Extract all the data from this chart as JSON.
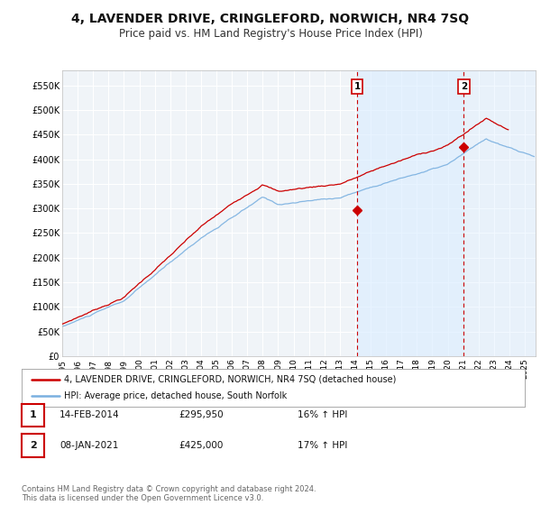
{
  "title": "4, LAVENDER DRIVE, CRINGLEFORD, NORWICH, NR4 7SQ",
  "subtitle": "Price paid vs. HM Land Registry's House Price Index (HPI)",
  "title_fontsize": 10,
  "subtitle_fontsize": 8.5,
  "ylabel_ticks": [
    "£0",
    "£50K",
    "£100K",
    "£150K",
    "£200K",
    "£250K",
    "£300K",
    "£350K",
    "£400K",
    "£450K",
    "£500K",
    "£550K"
  ],
  "ytick_values": [
    0,
    50000,
    100000,
    150000,
    200000,
    250000,
    300000,
    350000,
    400000,
    450000,
    500000,
    550000
  ],
  "ylim": [
    0,
    580000
  ],
  "xlim_start": 1995.0,
  "xlim_end": 2025.7,
  "xticks": [
    1995,
    1996,
    1997,
    1998,
    1999,
    2000,
    2001,
    2002,
    2003,
    2004,
    2005,
    2006,
    2007,
    2008,
    2009,
    2010,
    2011,
    2012,
    2013,
    2014,
    2015,
    2016,
    2017,
    2018,
    2019,
    2020,
    2021,
    2022,
    2023,
    2024,
    2025
  ],
  "hpi_color": "#7ab0e0",
  "price_color": "#cc0000",
  "dashed_line_color": "#cc0000",
  "shade_color": "#ddeeff",
  "point1_x": 2014.12,
  "point1_y": 295950,
  "point2_x": 2021.05,
  "point2_y": 425000,
  "annotation1_label": "1",
  "annotation2_label": "2",
  "legend_label1": "4, LAVENDER DRIVE, CRINGLEFORD, NORWICH, NR4 7SQ (detached house)",
  "legend_label2": "HPI: Average price, detached house, South Norfolk",
  "table_row1": [
    "1",
    "14-FEB-2014",
    "£295,950",
    "16% ↑ HPI"
  ],
  "table_row2": [
    "2",
    "08-JAN-2021",
    "£425,000",
    "17% ↑ HPI"
  ],
  "footer": "Contains HM Land Registry data © Crown copyright and database right 2024.\nThis data is licensed under the Open Government Licence v3.0.",
  "bg_color": "#ffffff",
  "plot_bg_color": "#f0f4f8",
  "grid_color": "#ffffff"
}
